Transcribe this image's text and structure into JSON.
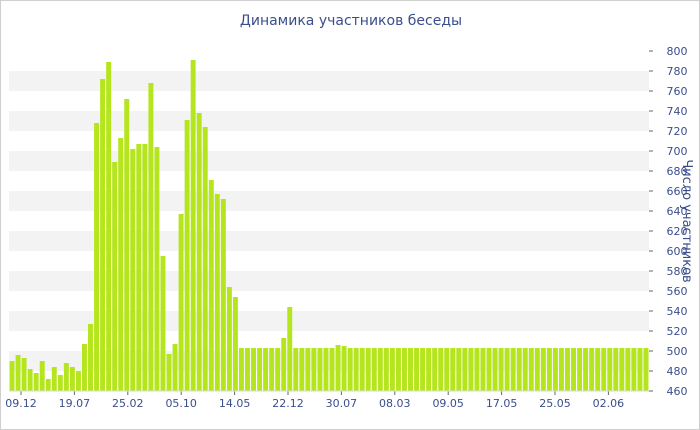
{
  "chart_data": {
    "type": "bar",
    "title": "Динамика участников беседы",
    "ylabel": "Число участников",
    "ylim": [
      460,
      800
    ],
    "yticks": [
      460,
      480,
      500,
      520,
      540,
      560,
      580,
      600,
      620,
      640,
      660,
      680,
      700,
      720,
      740,
      760,
      780,
      800
    ],
    "xtick_labels": [
      "09.12",
      "19.07",
      "25.02",
      "05.10",
      "14.05",
      "22.12",
      "30.07",
      "08.03",
      "09.05",
      "17.05",
      "25.05",
      "02.06"
    ],
    "values": [
      490,
      496,
      493,
      482,
      478,
      490,
      472,
      484,
      476,
      488,
      484,
      480,
      507,
      527,
      728,
      772,
      789,
      689,
      713,
      752,
      702,
      707,
      707,
      768,
      704,
      595,
      497,
      507,
      637,
      731,
      791,
      738,
      724,
      671,
      657,
      652,
      564,
      554,
      503,
      503,
      503,
      503,
      503,
      503,
      503,
      513,
      544,
      503,
      503,
      503,
      503,
      503,
      503,
      503,
      506,
      505,
      503,
      503,
      503,
      503,
      503,
      503,
      503,
      503,
      503,
      503,
      503,
      503,
      503,
      503,
      503,
      503,
      503,
      503,
      503,
      503,
      503,
      503,
      503,
      503,
      503,
      503,
      503,
      503,
      503,
      503,
      503,
      503,
      503,
      503,
      503,
      503,
      503,
      503,
      503,
      503,
      503,
      503,
      503,
      503,
      503,
      503,
      503,
      503,
      503,
      503
    ],
    "grid": true,
    "colors": {
      "bar": "#b5e61d",
      "band": "#f3f3f3",
      "text": "#3a4e8c"
    }
  }
}
